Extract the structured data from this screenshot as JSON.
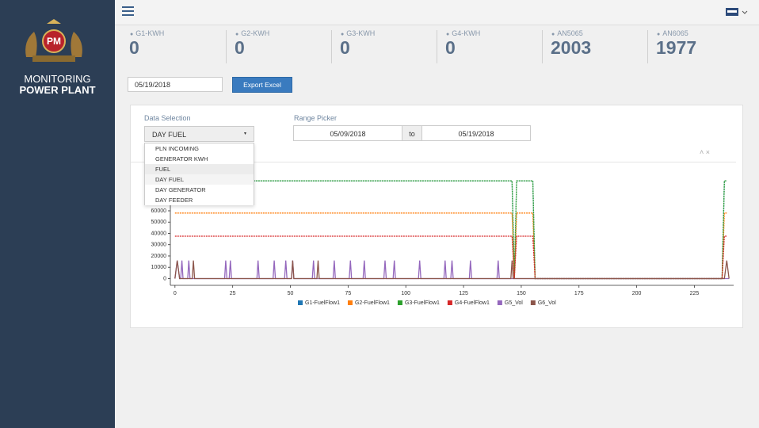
{
  "sidebar": {
    "brand_line1": "MONITORING",
    "brand_line2": "POWER PLANT"
  },
  "stats": [
    {
      "label": "G1-KWH",
      "value": 0
    },
    {
      "label": "G2-KWH",
      "value": 0
    },
    {
      "label": "G3-KWH",
      "value": 0
    },
    {
      "label": "G4-KWH",
      "value": 0
    },
    {
      "label": "AN5065",
      "value": 2003
    },
    {
      "label": "AN6065",
      "value": 1977
    }
  ],
  "controls": {
    "date": "05/19/2018",
    "export_button": "Export Excel"
  },
  "filters": {
    "data_selection_label": "Data Selection",
    "selected": "DAY FUEL",
    "options": [
      "PLN INCOMING",
      "GENERATOR KWH",
      "FUEL",
      "DAY FUEL",
      "DAY GENERATOR",
      "DAY FEEDER"
    ],
    "range_label": "Range Picker",
    "range_start": "05/09/2018",
    "range_separator": "to",
    "range_end": "05/19/2018"
  },
  "chart_data": {
    "type": "line",
    "xlim": [
      -2,
      242
    ],
    "xticks": [
      0,
      25,
      50,
      75,
      100,
      125,
      150,
      175,
      200,
      225
    ],
    "ylim": [
      -6000,
      100000
    ],
    "yticks": [
      0,
      10000,
      20000,
      30000,
      40000,
      50000,
      60000
    ],
    "grid": false,
    "legend": "bottom",
    "series": [
      {
        "name": "G1-FuelFlow1",
        "color": "#1f77b4",
        "x": [
          0,
          146,
          147,
          148,
          155,
          156,
          237,
          238,
          239
        ],
        "values": [
          86600,
          86600,
          0,
          86600,
          86600,
          0,
          0,
          86600,
          86600
        ]
      },
      {
        "name": "G2-FuelFlow1",
        "color": "#ff7f0e",
        "x": [
          0,
          146,
          147,
          148,
          155,
          156,
          237,
          238,
          239
        ],
        "values": [
          58000,
          58000,
          0,
          58000,
          58000,
          0,
          0,
          58000,
          58000
        ]
      },
      {
        "name": "G3-FuelFlow1",
        "color": "#2ca02c",
        "x": [
          0,
          146,
          147,
          148,
          155,
          156,
          237,
          238,
          239
        ],
        "values": [
          86600,
          86600,
          0,
          86600,
          86600,
          0,
          0,
          86600,
          86600
        ]
      },
      {
        "name": "G4-FuelFlow1",
        "color": "#d62728",
        "x": [
          0,
          146,
          147,
          148,
          155,
          156,
          237,
          238,
          239
        ],
        "values": [
          37500,
          37500,
          0,
          37500,
          37500,
          0,
          0,
          37500,
          37500
        ]
      },
      {
        "name": "G5_Vol",
        "color": "#9467bd",
        "x": [
          0,
          1,
          2,
          2.5,
          3,
          3.5,
          5.5,
          6,
          6.5,
          21.5,
          22,
          22.5,
          23.5,
          24,
          24.5,
          35.5,
          36,
          36.5,
          42.5,
          43,
          43.5,
          47.5,
          48,
          48.5,
          50.5,
          51,
          51.5,
          59.5,
          60,
          60.5,
          68.5,
          69,
          69.5,
          75.5,
          76,
          76.5,
          81.5,
          82,
          82.5,
          90.5,
          91,
          91.5,
          94.5,
          95,
          95.5,
          105.5,
          106,
          106.5,
          116.5,
          117,
          117.5,
          119.5,
          120,
          120.5,
          127.5,
          128,
          128.5,
          139.5,
          140,
          140.5,
          240
        ],
        "values": [
          0,
          16000,
          0,
          0,
          16000,
          0,
          0,
          16000,
          0,
          0,
          16000,
          0,
          0,
          16000,
          0,
          0,
          16000,
          0,
          0,
          16000,
          0,
          0,
          16000,
          0,
          0,
          16000,
          0,
          0,
          16000,
          0,
          0,
          16000,
          0,
          0,
          16000,
          0,
          0,
          16000,
          0,
          0,
          16000,
          0,
          0,
          16000,
          0,
          0,
          16000,
          0,
          0,
          16000,
          0,
          0,
          16000,
          0,
          0,
          16000,
          0,
          0,
          16000,
          0,
          0
        ]
      },
      {
        "name": "G6_Vol",
        "color": "#8c564b",
        "x": [
          0,
          1,
          2,
          7.5,
          8,
          8.5,
          50.5,
          51,
          51.5,
          61.5,
          62,
          62.5,
          145.5,
          146,
          146.5,
          238,
          239,
          240
        ],
        "values": [
          0,
          16000,
          0,
          0,
          16000,
          0,
          0,
          16000,
          0,
          0,
          16000,
          0,
          0,
          16000,
          0,
          0,
          16000,
          0
        ]
      }
    ]
  }
}
